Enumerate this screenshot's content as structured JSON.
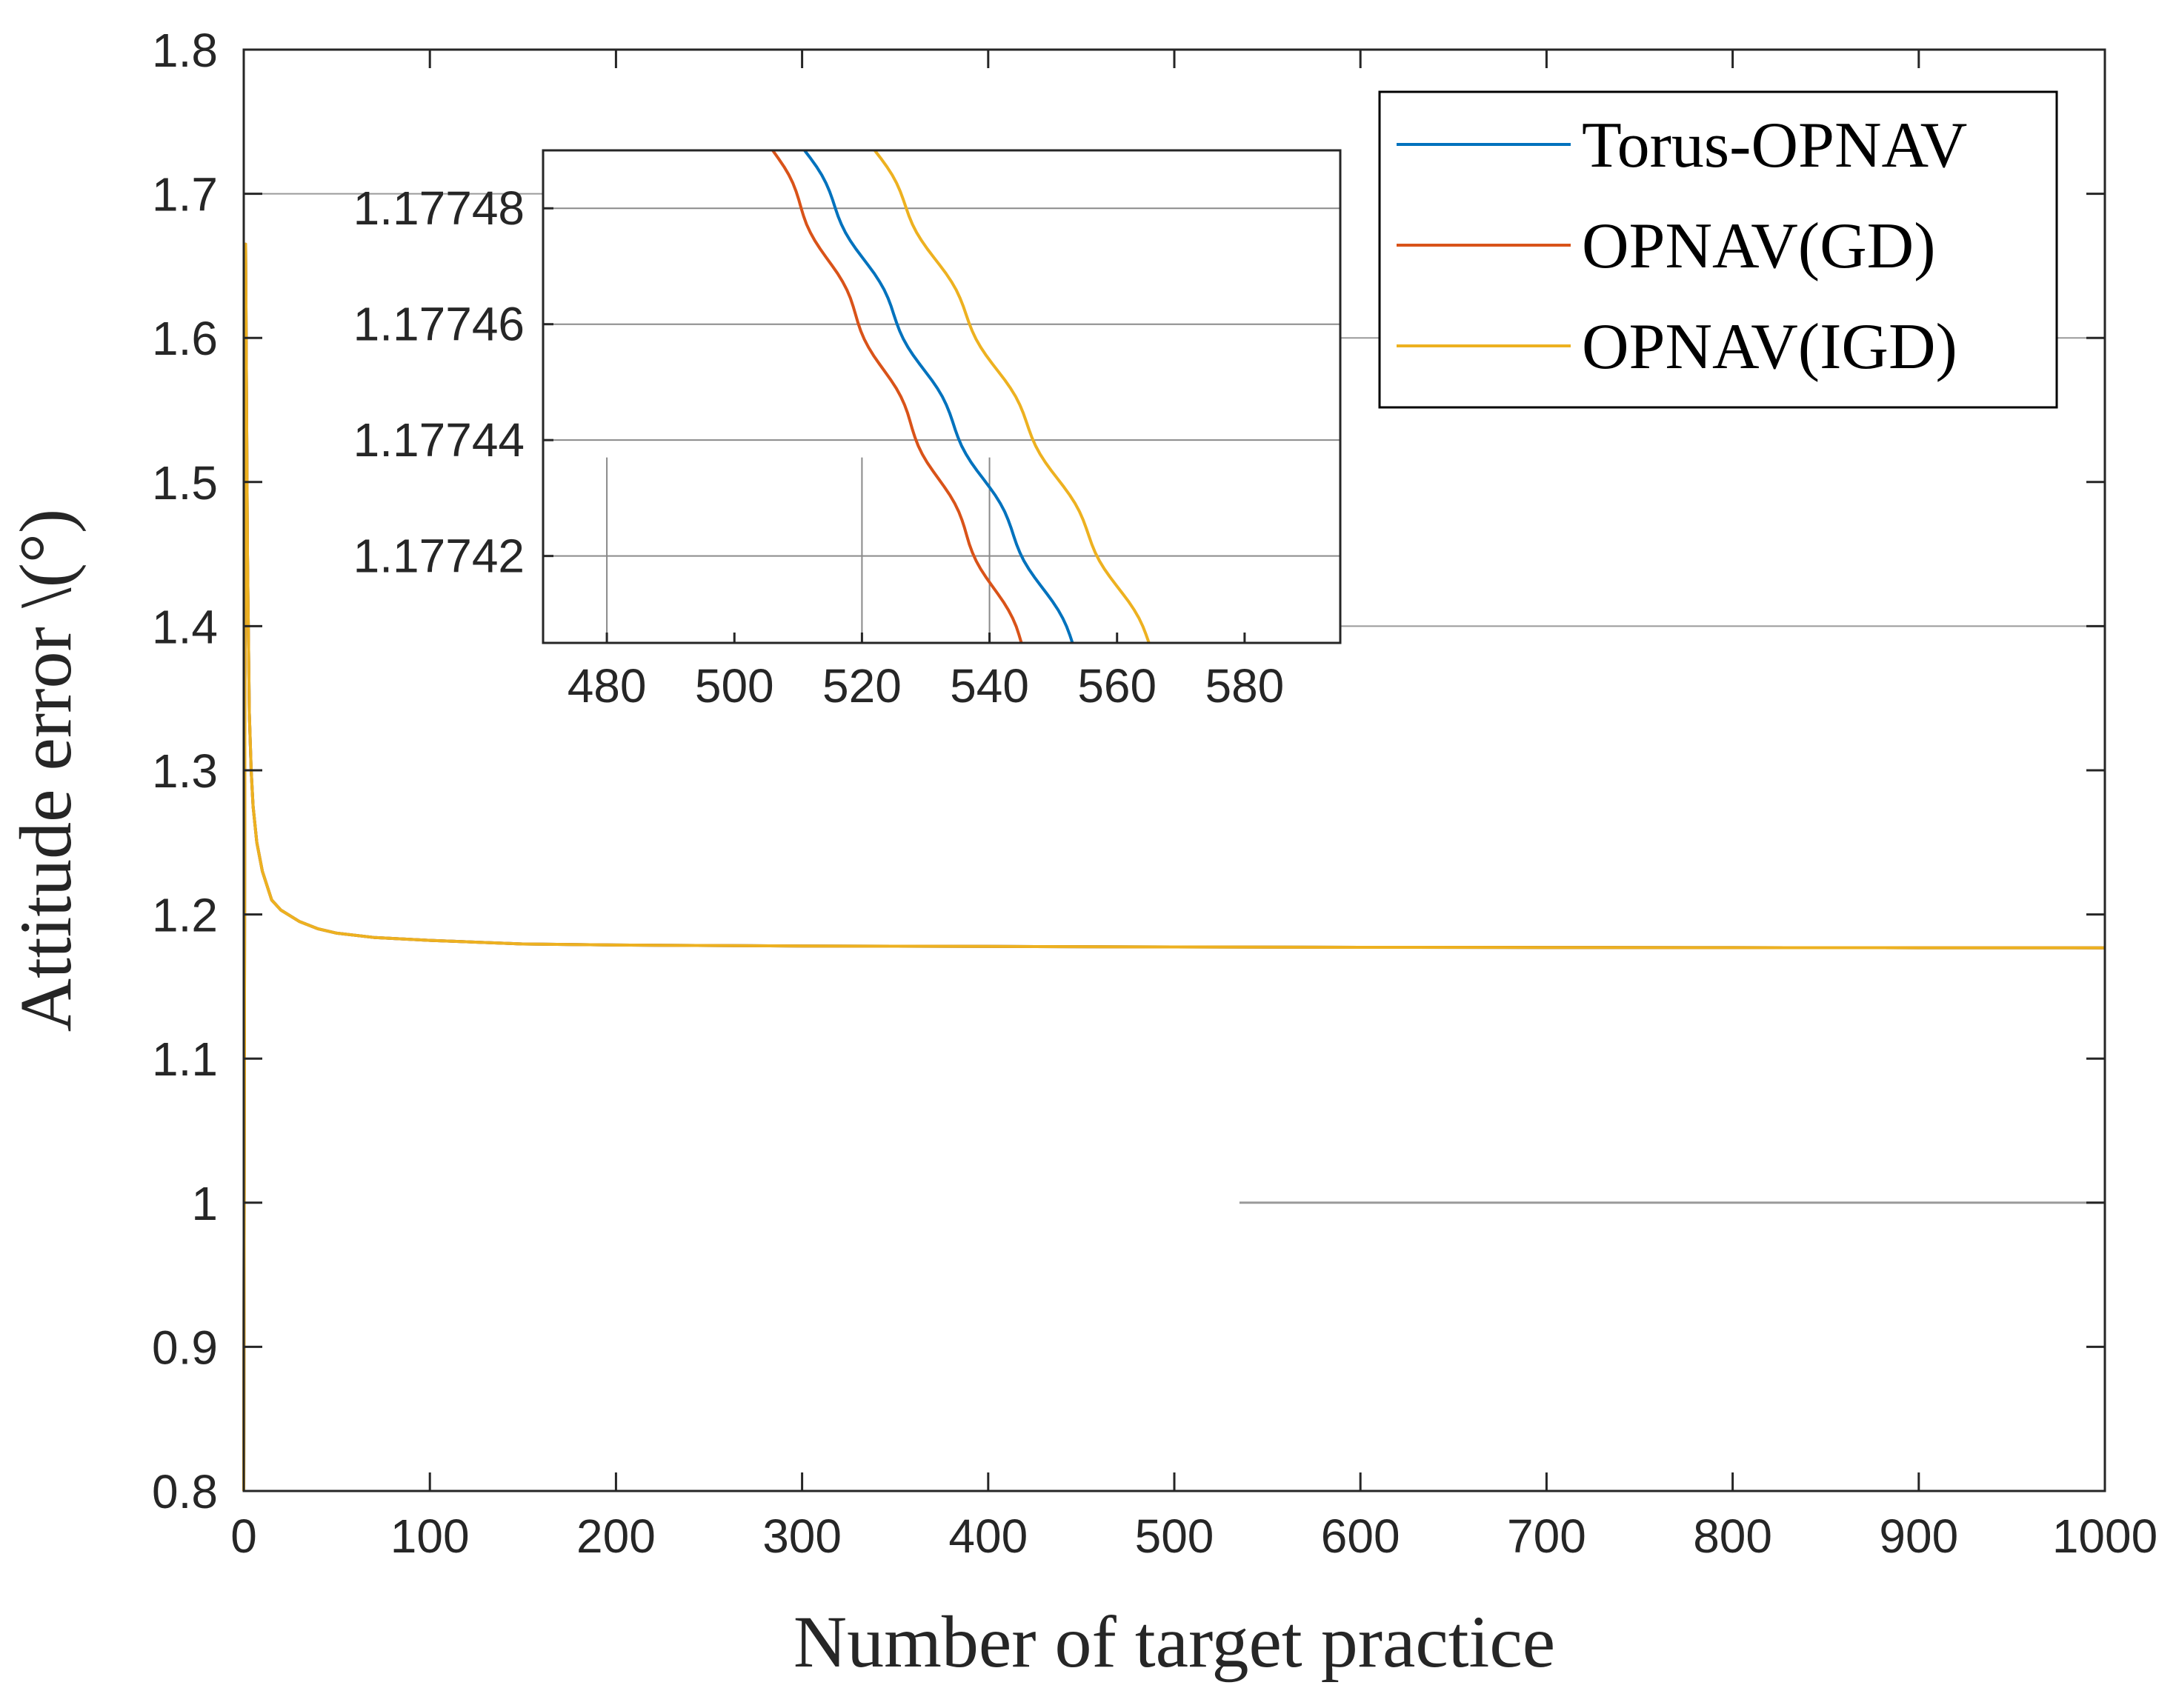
{
  "chart_data": {
    "type": "line",
    "title": "",
    "xlabel": "Number of target practice",
    "ylabel": "Attitude error \\(°)",
    "xlim": [
      0,
      1000
    ],
    "ylim": [
      0.8,
      1.8
    ],
    "xticks": [
      "0",
      "100",
      "200",
      "300",
      "400",
      "500",
      "600",
      "700",
      "800",
      "900",
      "1000"
    ],
    "yticks": [
      "0.8",
      "0.9",
      "1",
      "1.1",
      "1.2",
      "1.3",
      "1.4",
      "1.5",
      "1.6",
      "1.7",
      "1.8"
    ],
    "legend_position": "top-right",
    "series": [
      {
        "name": "Torus-OPNAV",
        "color": "#0072BD",
        "x": [
          0,
          1,
          2,
          3,
          4,
          5,
          7,
          10,
          15,
          20,
          30,
          40,
          50,
          70,
          100,
          150,
          200,
          300,
          400,
          500,
          600,
          700,
          800,
          900,
          1000
        ],
        "y": [
          0.8,
          1.665,
          1.45,
          1.34,
          1.3,
          1.275,
          1.25,
          1.23,
          1.21,
          1.203,
          1.195,
          1.19,
          1.187,
          1.184,
          1.182,
          1.1795,
          1.1788,
          1.1781,
          1.1778,
          1.17745,
          1.1772,
          1.1771,
          1.177,
          1.1769,
          1.1768
        ]
      },
      {
        "name": "OPNAV(GD)",
        "color": "#D95319",
        "x": [
          0,
          1,
          2,
          3,
          4,
          5,
          7,
          10,
          15,
          20,
          30,
          40,
          50,
          70,
          100,
          150,
          200,
          300,
          400,
          500,
          600,
          700,
          800,
          900,
          1000
        ],
        "y": [
          0.8,
          1.665,
          1.45,
          1.34,
          1.3,
          1.275,
          1.25,
          1.23,
          1.21,
          1.203,
          1.195,
          1.19,
          1.187,
          1.184,
          1.182,
          1.1795,
          1.1788,
          1.1781,
          1.1778,
          1.17744,
          1.1772,
          1.1771,
          1.177,
          1.1769,
          1.1768
        ]
      },
      {
        "name": "OPNAV(IGD)",
        "color": "#EDB120",
        "x": [
          0,
          1,
          2,
          3,
          4,
          5,
          7,
          10,
          15,
          20,
          30,
          40,
          50,
          70,
          100,
          150,
          200,
          300,
          400,
          500,
          600,
          700,
          800,
          900,
          1000
        ],
        "y": [
          0.8,
          1.665,
          1.45,
          1.34,
          1.3,
          1.275,
          1.25,
          1.23,
          1.21,
          1.203,
          1.195,
          1.19,
          1.187,
          1.184,
          1.182,
          1.1795,
          1.1788,
          1.1781,
          1.1778,
          1.17746,
          1.1772,
          1.1771,
          1.177,
          1.1769,
          1.1768
        ]
      }
    ],
    "inset": {
      "xlim": [
        470,
        595
      ],
      "ylim": [
        1.177405,
        1.17749
      ],
      "xticks": [
        "480",
        "500",
        "520",
        "540",
        "560",
        "580"
      ],
      "yticks": [
        "1.17742",
        "1.17744",
        "1.17746",
        "1.17748"
      ],
      "series": [
        {
          "name": "Torus-OPNAV",
          "x": [
            511,
            553
          ],
          "y": [
            1.17749,
            1.177405
          ]
        },
        {
          "name": "OPNAV(GD)",
          "x": [
            506,
            545
          ],
          "y": [
            1.17749,
            1.177405
          ]
        },
        {
          "name": "OPNAV(IGD)",
          "x": [
            522,
            565
          ],
          "y": [
            1.17749,
            1.177405
          ]
        }
      ]
    }
  }
}
